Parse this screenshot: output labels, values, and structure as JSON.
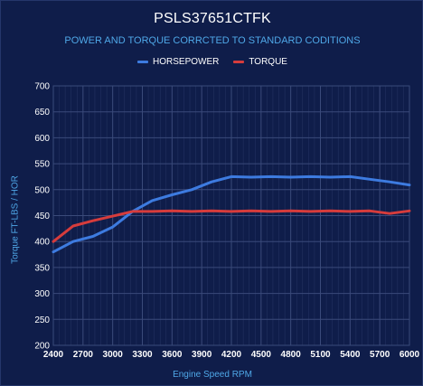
{
  "chart_data": {
    "type": "line",
    "title": "PSLS37651CTFK",
    "subtitle": "POWER AND TORQUE CORRCTED TO STANDARD CODITIONS",
    "xlabel": "Engine Speed RPM",
    "ylabel": "Torque FT-LBS / HOR",
    "x_ticks": [
      2400,
      2700,
      3000,
      3300,
      3600,
      3900,
      4200,
      4500,
      4800,
      5100,
      5400,
      5700,
      6000
    ],
    "y_ticks": [
      200,
      250,
      300,
      350,
      400,
      450,
      500,
      550,
      600,
      650,
      700
    ],
    "xlim": [
      2400,
      6000
    ],
    "ylim": [
      200,
      700
    ],
    "grid": true,
    "legend_position": "top",
    "series": [
      {
        "name": "HORSEPOWER",
        "color": "#3d7be0",
        "x": [
          2400,
          2600,
          2800,
          3000,
          3200,
          3400,
          3600,
          3800,
          4000,
          4200,
          4400,
          4600,
          4800,
          5000,
          5200,
          5400,
          5600,
          5800,
          6000
        ],
        "y": [
          380,
          400,
          410,
          428,
          458,
          479,
          490,
          500,
          515,
          525,
          524,
          525,
          524,
          525,
          524,
          525,
          520,
          515,
          509
        ]
      },
      {
        "name": "TORQUE",
        "color": "#d63c3c",
        "x": [
          2400,
          2600,
          2800,
          3000,
          3200,
          3400,
          3600,
          3800,
          4000,
          4200,
          4400,
          4600,
          4800,
          5000,
          5200,
          5400,
          5600,
          5800,
          6000
        ],
        "y": [
          400,
          430,
          440,
          449,
          458,
          458,
          459,
          458,
          459,
          458,
          459,
          458,
          459,
          458,
          459,
          458,
          459,
          454,
          459
        ]
      }
    ]
  },
  "colors": {
    "background": "#0f1d4a",
    "grid": "#3a4a7a",
    "tick_text": "#ffffff",
    "axis_title": "#4fa8e8"
  }
}
